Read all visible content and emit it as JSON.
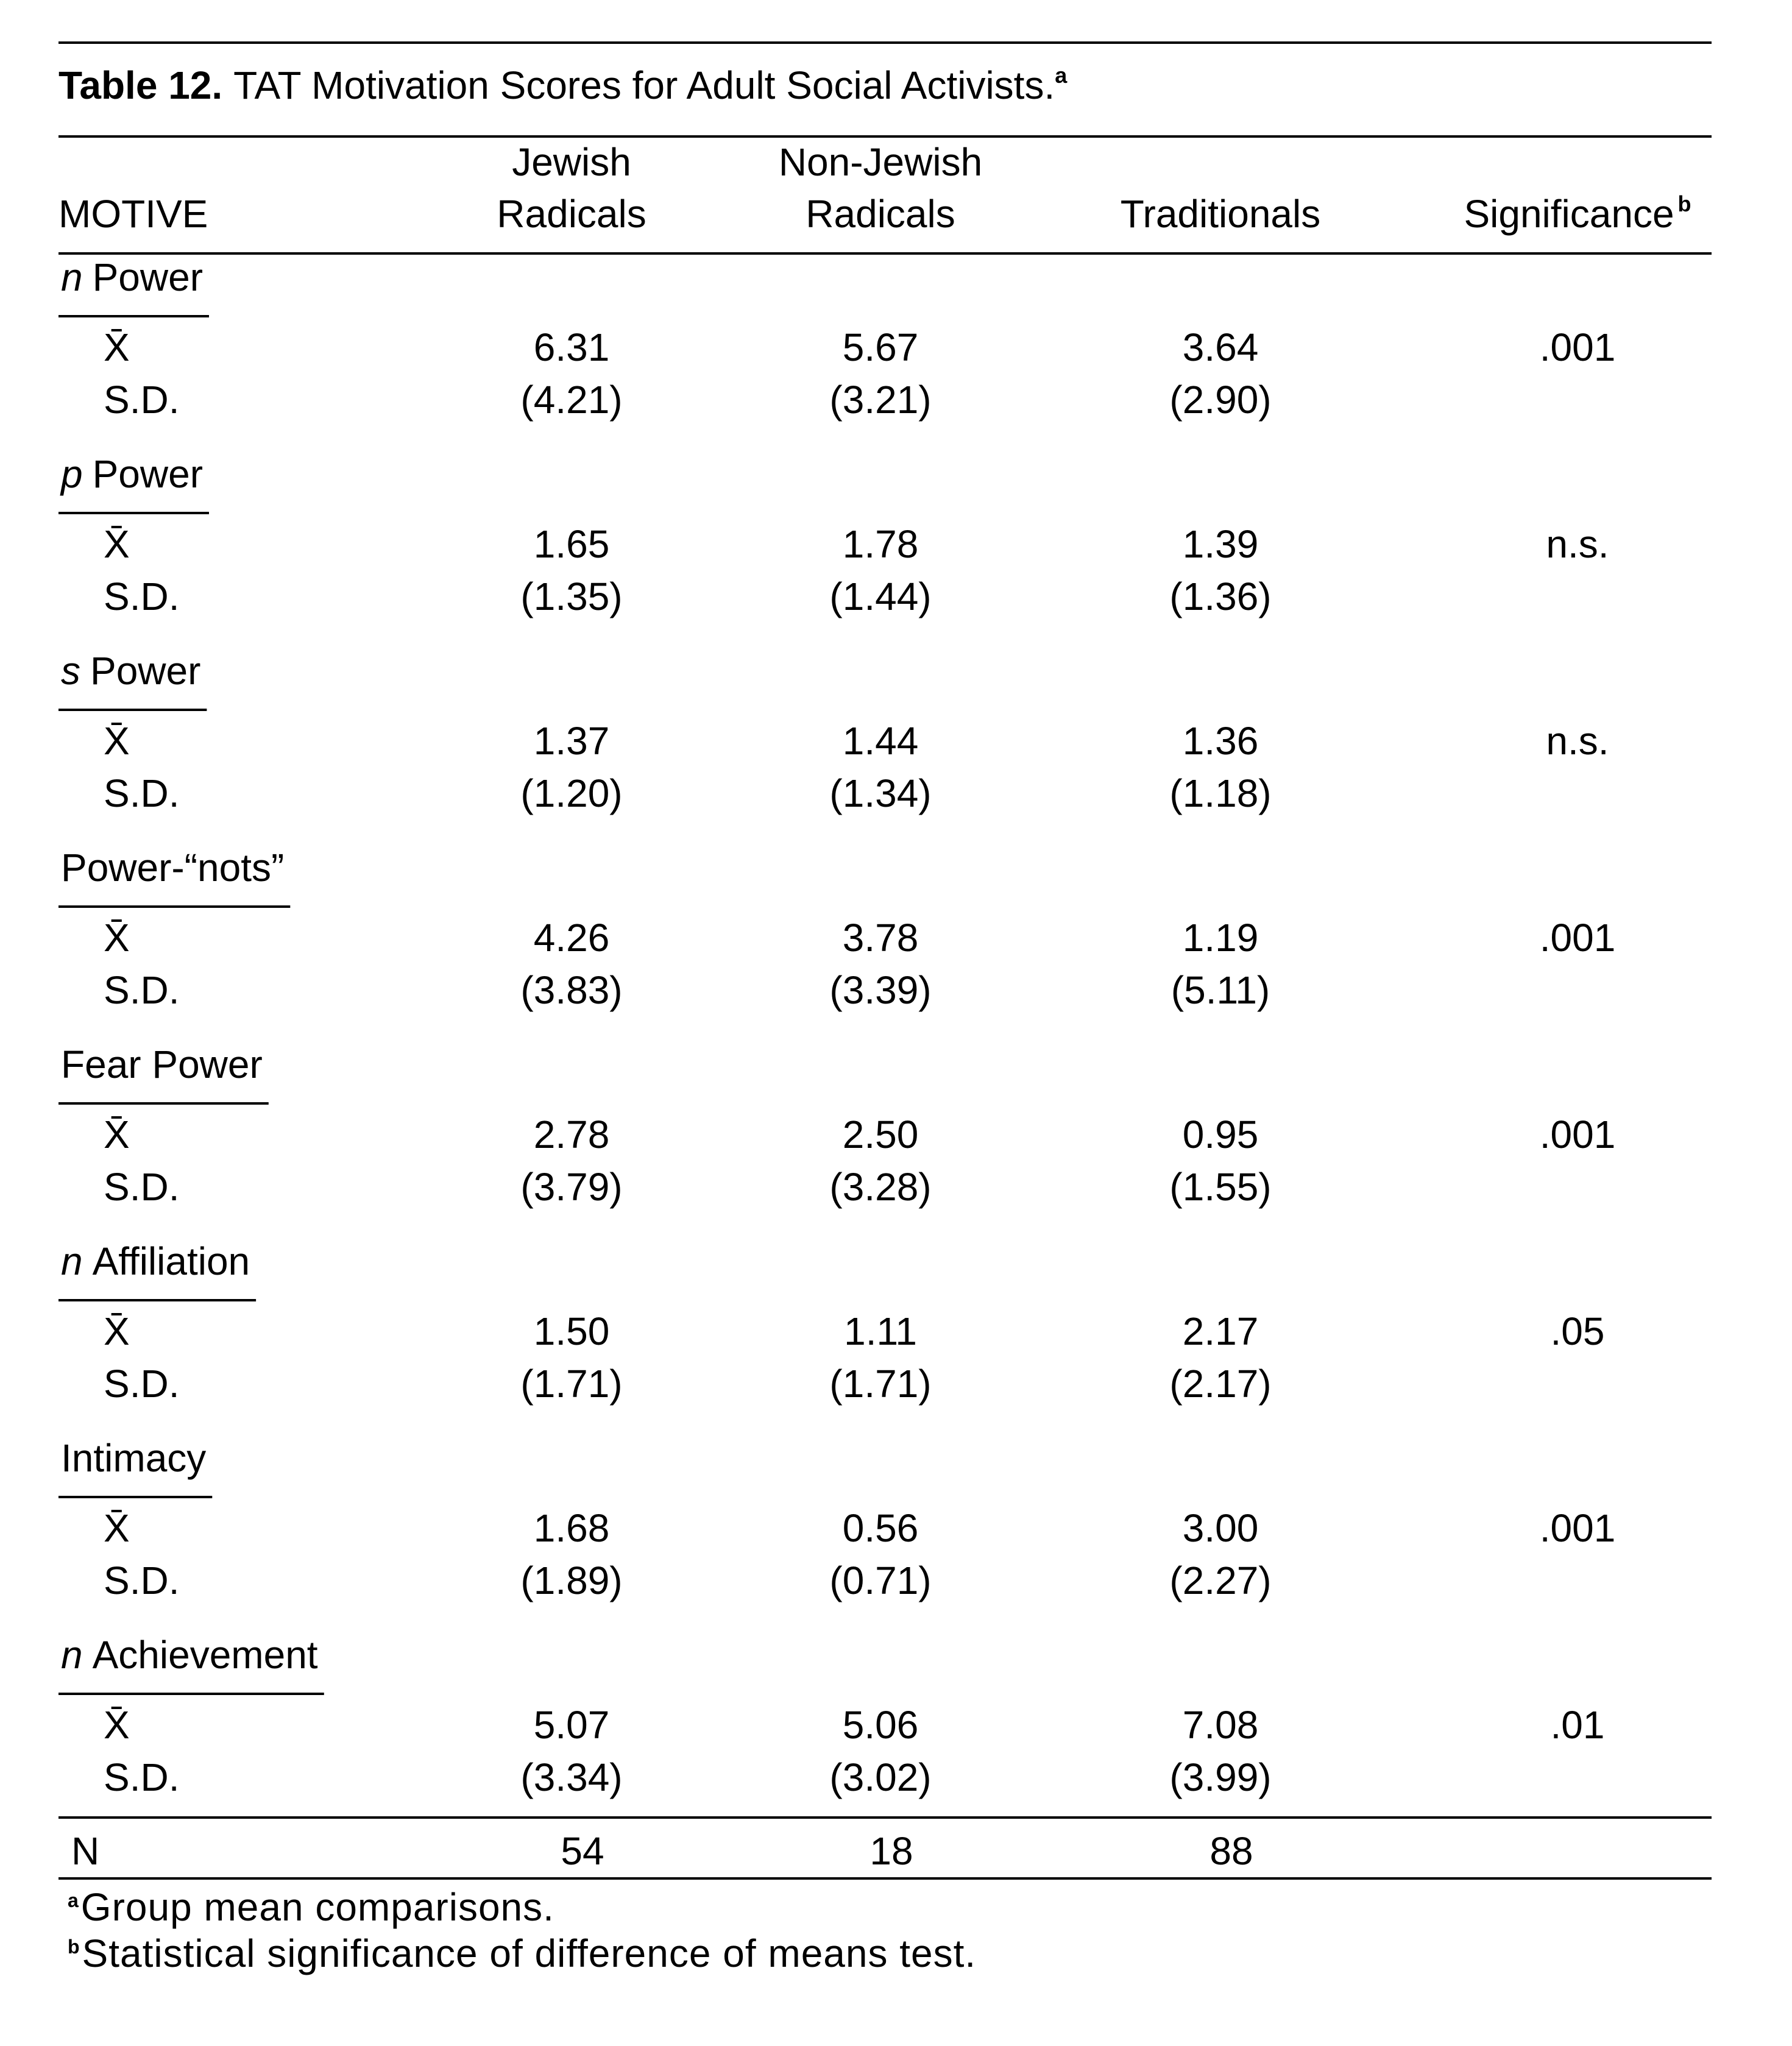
{
  "table": {
    "title_label": "Table 12.",
    "title": "TAT Motivation Scores for Adult Social Activists.",
    "title_note": "a",
    "columns": [
      [
        "MOTIVE"
      ],
      [
        "Jewish",
        "Radicals"
      ],
      [
        "Non-Jewish",
        "Radicals"
      ],
      [
        "Traditionals"
      ],
      [
        "Significance"
      ]
    ],
    "significance_note": "b",
    "mean_label": "X̄",
    "sd_label": "S.D.",
    "groups": [
      {
        "prefix": "n",
        "name": "Power",
        "mean": [
          "6.31",
          "5.67",
          "3.64"
        ],
        "sd": [
          "(4.21)",
          "(3.21)",
          "(2.90)"
        ],
        "significance": ".001"
      },
      {
        "prefix": "p",
        "name": "Power",
        "mean": [
          "1.65",
          "1.78",
          "1.39"
        ],
        "sd": [
          "(1.35)",
          "(1.44)",
          "(1.36)"
        ],
        "significance": "n.s."
      },
      {
        "prefix": "s",
        "name": "Power",
        "mean": [
          "1.37",
          "1.44",
          "1.36"
        ],
        "sd": [
          "(1.20)",
          "(1.34)",
          "(1.18)"
        ],
        "significance": "n.s."
      },
      {
        "name": "Power-“nots”",
        "mean": [
          "4.26",
          "3.78",
          "1.19"
        ],
        "sd": [
          "(3.83)",
          "(3.39)",
          "(5.11)"
        ],
        "significance": ".001"
      },
      {
        "name": "Fear Power",
        "mean": [
          "2.78",
          "2.50",
          "0.95"
        ],
        "sd": [
          "(3.79)",
          "(3.28)",
          "(1.55)"
        ],
        "significance": ".001"
      },
      {
        "prefix": "n",
        "name": "Affiliation",
        "mean": [
          "1.50",
          "1.11",
          "2.17"
        ],
        "sd": [
          "(1.71)",
          "(1.71)",
          "(2.17)"
        ],
        "significance": ".05"
      },
      {
        "name": "Intimacy",
        "mean": [
          "1.68",
          "0.56",
          "3.00"
        ],
        "sd": [
          "(1.89)",
          "(0.71)",
          "(2.27)"
        ],
        "significance": ".001"
      },
      {
        "prefix": "n",
        "name": "Achievement",
        "mean": [
          "5.07",
          "5.06",
          "7.08"
        ],
        "sd": [
          "(3.34)",
          "(3.02)",
          "(3.99)"
        ],
        "significance": ".01"
      }
    ],
    "n_label": "N",
    "n_values": [
      "54",
      "18",
      "88"
    ],
    "footnotes": [
      {
        "mark": "a",
        "text": "Group mean comparisons."
      },
      {
        "mark": "b",
        "text": "Statistical significance of difference of means test."
      }
    ]
  }
}
